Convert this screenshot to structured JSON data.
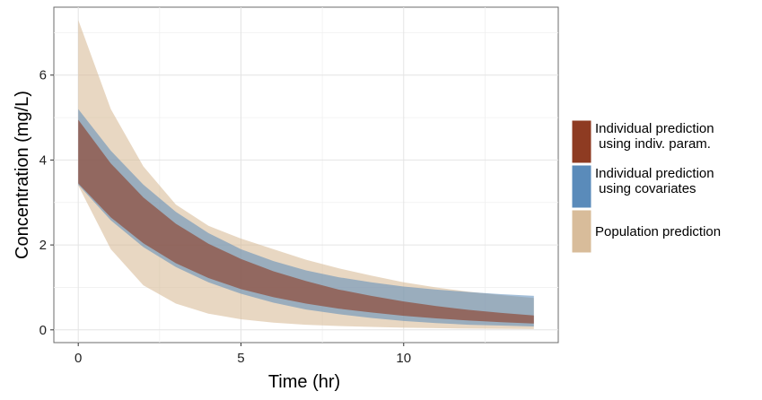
{
  "chart_data": {
    "type": "area",
    "title": "",
    "xlabel": "Time (hr)",
    "ylabel": "Concentration (mg/L)",
    "xlim": [
      -0.75,
      14.75
    ],
    "ylim": [
      -0.3,
      7.6
    ],
    "x_ticks": [
      0,
      5,
      10
    ],
    "x_tick_labels": [
      "0",
      "5",
      "10"
    ],
    "y_ticks": [
      0,
      2,
      4,
      6
    ],
    "y_tick_labels": [
      "0",
      "2",
      "4",
      "6"
    ],
    "grid": true,
    "legend_position": "right",
    "x_range": [
      0,
      14
    ],
    "series": [
      {
        "name": "Population prediction",
        "legend_lines": [
          "Population prediction"
        ],
        "color": "#D8BC9A",
        "opacity": 0.6,
        "x": [
          0,
          1,
          2,
          3,
          4,
          5,
          6,
          7,
          8,
          9,
          10,
          11,
          12,
          13,
          14
        ],
        "lower": [
          3.4,
          1.9,
          1.05,
          0.62,
          0.38,
          0.25,
          0.17,
          0.12,
          0.09,
          0.07,
          0.05,
          0.04,
          0.03,
          0.025,
          0.02
        ],
        "upper": [
          7.3,
          5.2,
          3.85,
          2.95,
          2.45,
          2.15,
          1.9,
          1.65,
          1.45,
          1.28,
          1.12,
          1.0,
          0.9,
          0.82,
          0.75
        ]
      },
      {
        "name": "Individual prediction using covariates",
        "legend_lines": [
          "Individual prediction",
          " using covariates"
        ],
        "color": "#5A8BBA",
        "opacity": 0.55,
        "x": [
          0,
          1,
          2,
          3,
          4,
          5,
          6,
          7,
          8,
          9,
          10,
          11,
          12,
          13,
          14
        ],
        "lower": [
          3.42,
          2.58,
          1.95,
          1.48,
          1.12,
          0.85,
          0.64,
          0.48,
          0.37,
          0.28,
          0.21,
          0.16,
          0.12,
          0.1,
          0.08
        ],
        "upper": [
          5.2,
          4.22,
          3.42,
          2.78,
          2.28,
          1.9,
          1.62,
          1.4,
          1.24,
          1.12,
          1.02,
          0.95,
          0.89,
          0.84,
          0.8
        ]
      },
      {
        "name": "Individual prediction using indiv. param.",
        "legend_lines": [
          "Individual prediction",
          " using indiv. param."
        ],
        "color": "#8E3B22",
        "opacity": 0.6,
        "x": [
          0,
          1,
          2,
          3,
          4,
          5,
          6,
          7,
          8,
          9,
          10,
          11,
          12,
          13,
          14
        ],
        "lower": [
          3.45,
          2.65,
          2.04,
          1.57,
          1.22,
          0.96,
          0.77,
          0.62,
          0.5,
          0.41,
          0.33,
          0.27,
          0.22,
          0.18,
          0.15
        ],
        "upper": [
          4.95,
          3.92,
          3.12,
          2.5,
          2.03,
          1.67,
          1.38,
          1.15,
          0.95,
          0.8,
          0.67,
          0.56,
          0.47,
          0.4,
          0.34
        ]
      }
    ],
    "legend_order": [
      2,
      1,
      0
    ],
    "legend_key_colors": [
      "#8E3B22",
      "#5A8BBA",
      "#D8BC9A"
    ]
  }
}
